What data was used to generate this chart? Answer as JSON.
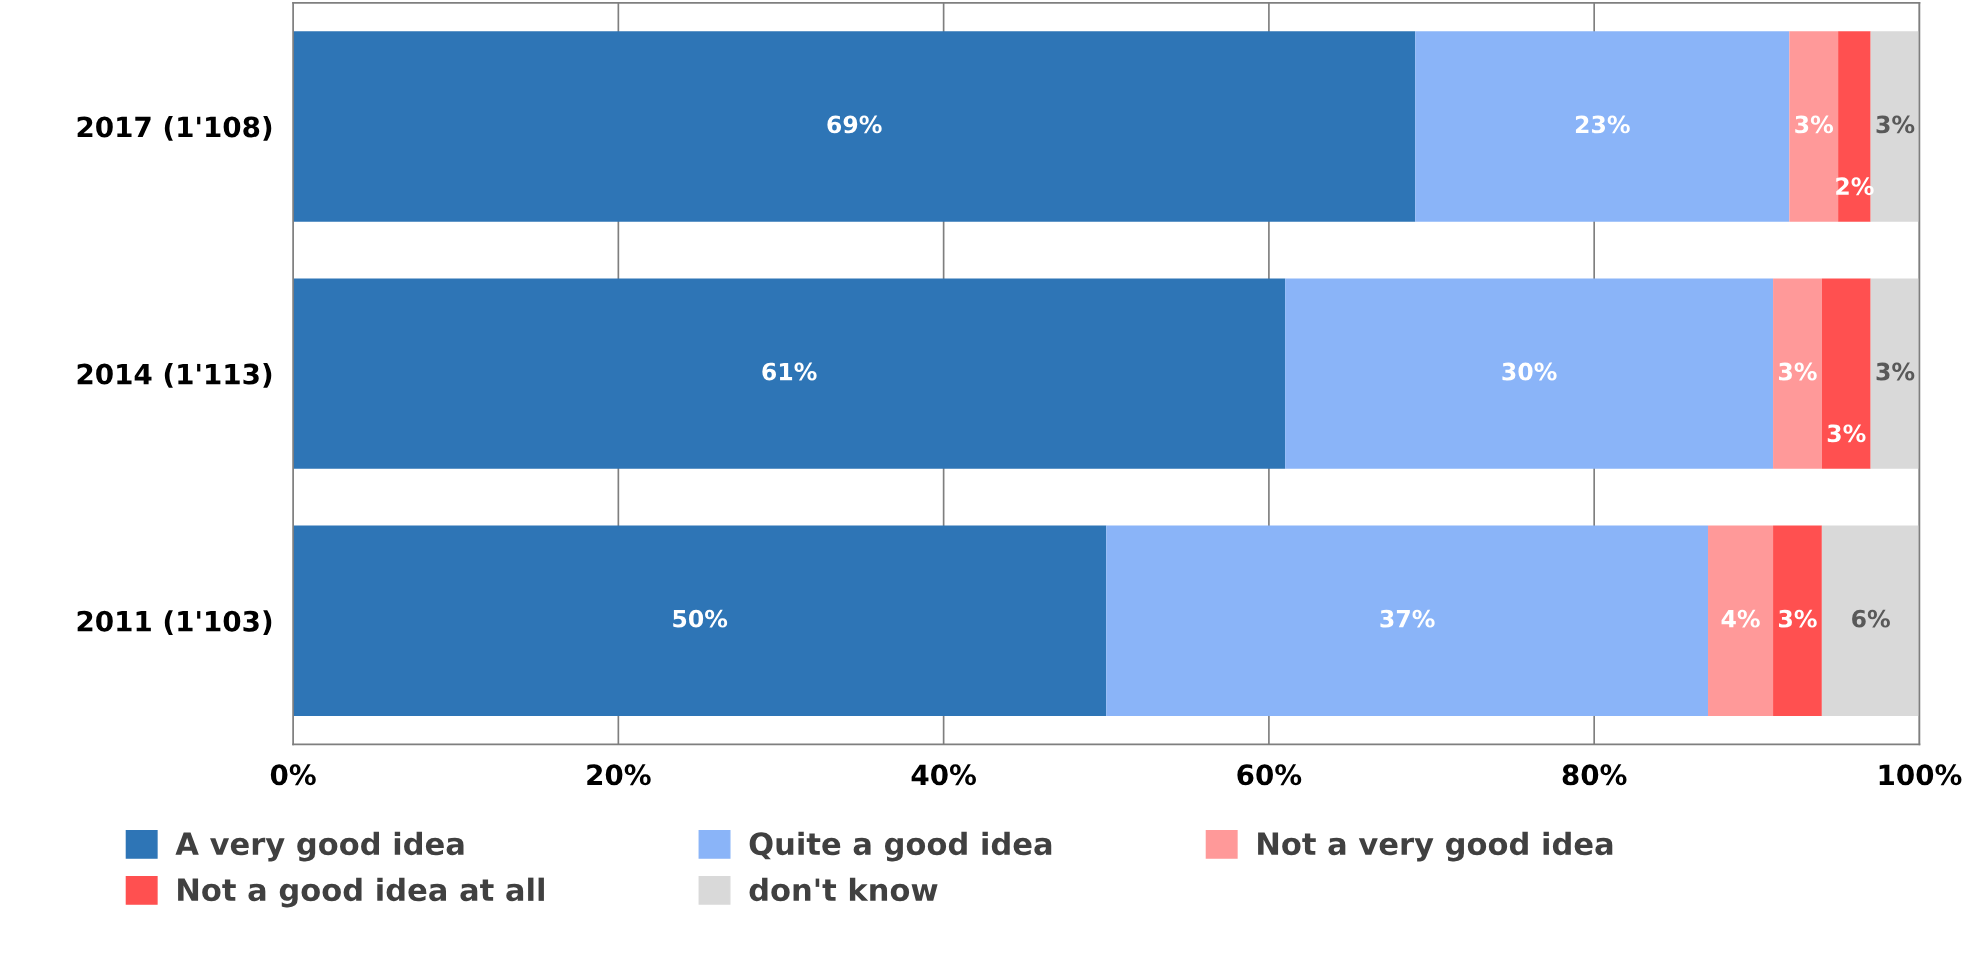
{
  "chart_data": {
    "type": "bar",
    "orientation": "horizontal",
    "stacked": true,
    "categories": [
      "2017 (1'108)",
      "2014 (1'113)",
      "2011 (1'103)"
    ],
    "series": [
      {
        "name": "A very good idea",
        "color": "#2e75b6",
        "values": [
          69,
          61,
          50
        ],
        "value_labels": [
          "69%",
          "61%",
          "50%"
        ]
      },
      {
        "name": "Quite a good idea",
        "color": "#8ab4f8",
        "values": [
          23,
          30,
          37
        ],
        "value_labels": [
          "23%",
          "30%",
          "37%"
        ]
      },
      {
        "name": "Not a very good idea",
        "color": "#ff9999",
        "values": [
          3,
          3,
          4
        ],
        "value_labels": [
          "3%",
          "3%",
          "4%"
        ]
      },
      {
        "name": "Not a good idea at all",
        "color": "#ff5050",
        "values": [
          2,
          3,
          3
        ],
        "value_labels": [
          "2%",
          "3%",
          "3%"
        ]
      },
      {
        "name": "don't know",
        "color": "#d9d9d9",
        "values": [
          3,
          3,
          6
        ],
        "value_labels": [
          "3%",
          "3%",
          "6%"
        ]
      }
    ],
    "xlim": [
      0,
      100
    ],
    "xticks": [
      {
        "value": 0,
        "label": "0%"
      },
      {
        "value": 20,
        "label": "20%"
      },
      {
        "value": 40,
        "label": "40%"
      },
      {
        "value": 60,
        "label": "60%"
      },
      {
        "value": 80,
        "label": "80%"
      },
      {
        "value": 100,
        "label": "100%"
      }
    ],
    "grid": "x",
    "legend": "bottom"
  }
}
